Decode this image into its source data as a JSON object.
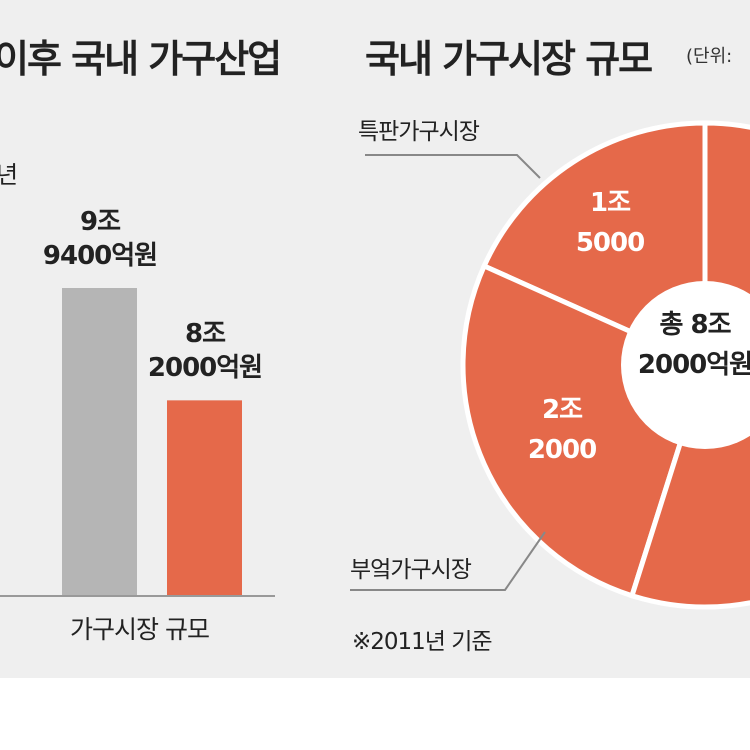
{
  "colors": {
    "orange": "#e5694a",
    "gray": "#b5b5b5",
    "background": "#efefef"
  },
  "chart_data": [
    {
      "type": "bar",
      "title": "이후 국내 가구산업",
      "subtitle_fragment": "년",
      "xlabel": "가구시장 규모",
      "categories": [
        "",
        ""
      ],
      "values": [
        9.94,
        8.2
      ],
      "data_labels": [
        [
          "9조",
          "9400억원"
        ],
        [
          "8조",
          "2000억원"
        ]
      ],
      "unit": "조원",
      "ylim": [
        5.17,
        9.94
      ]
    },
    {
      "type": "pie",
      "title": "국내 가구시장 규모",
      "unit_label": "(단위:",
      "center_label": [
        "총 8조",
        "2000억원"
      ],
      "total": 82000,
      "slices": [
        {
          "name": "특판가구시장",
          "value": 15000,
          "label": [
            "1조",
            "5000"
          ]
        },
        {
          "name": "부엌가구시장",
          "value": 22000,
          "label": [
            "2조",
            "2000"
          ]
        },
        {
          "name": "",
          "value": 45000,
          "label": []
        }
      ],
      "note": "※2011년 기준"
    }
  ]
}
